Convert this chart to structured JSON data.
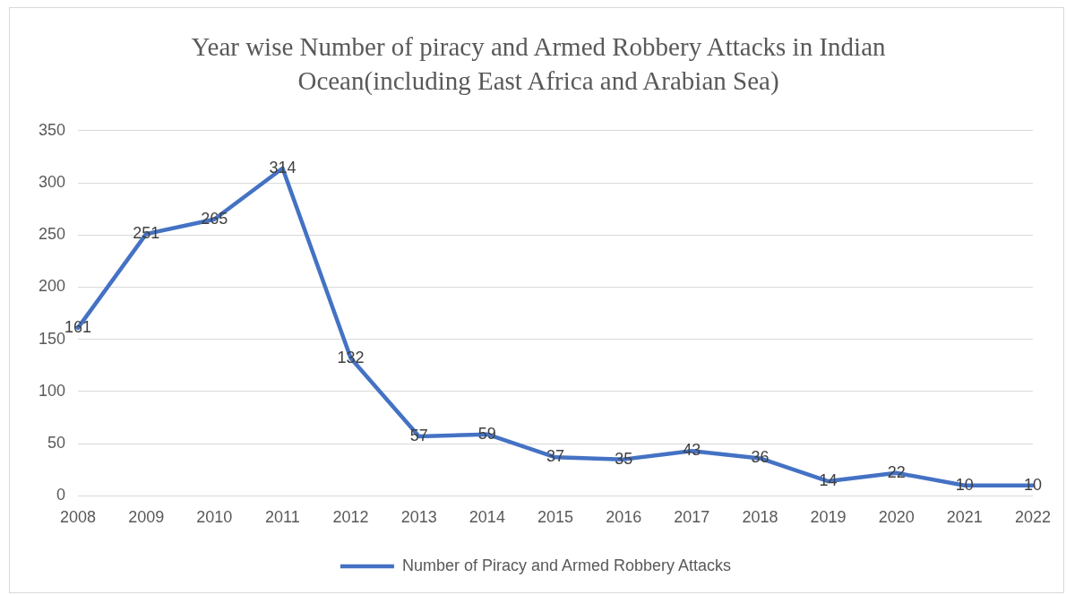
{
  "chart_data": {
    "type": "line",
    "title": "Year wise Number of piracy and Armed Robbery Attacks in Indian Ocean(including East Africa and Arabian Sea)",
    "categories": [
      "2008",
      "2009",
      "2010",
      "2011",
      "2012",
      "2013",
      "2014",
      "2015",
      "2016",
      "2017",
      "2018",
      "2019",
      "2020",
      "2021",
      "2022"
    ],
    "series": [
      {
        "name": "Number of Piracy and Armed Robbery Attacks",
        "color": "#4472c4",
        "values": [
          161,
          251,
          265,
          314,
          132,
          57,
          59,
          37,
          35,
          43,
          36,
          14,
          22,
          10,
          10
        ]
      }
    ],
    "ylim": [
      0,
      350
    ],
    "yticks": [
      0,
      50,
      100,
      150,
      200,
      250,
      300,
      350
    ],
    "grid": "y",
    "legend": "bottom",
    "data_labels": true,
    "marker": "none"
  }
}
